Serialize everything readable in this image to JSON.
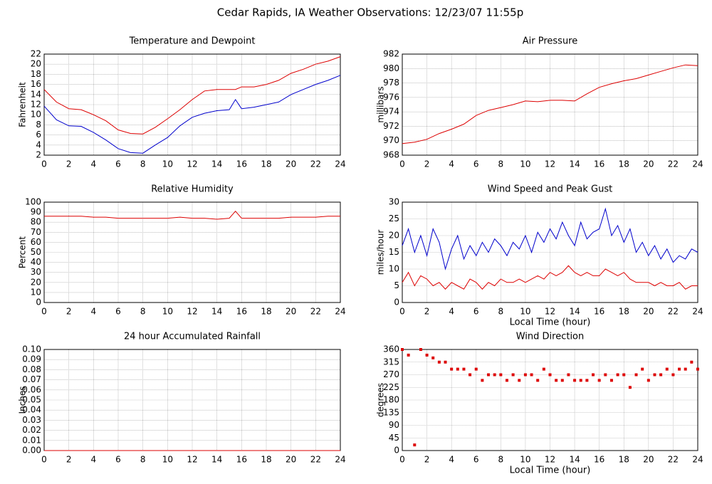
{
  "title": "Cedar Rapids, IA Weather Observations: 12/23/07 11:55p",
  "chart_data": [
    {
      "type": "line",
      "title": "Temperature and Dewpoint",
      "ylabel": "Fahrenheit",
      "x": [
        0,
        1,
        2,
        3,
        4,
        5,
        6,
        7,
        8,
        9,
        10,
        11,
        12,
        13,
        14,
        15,
        15.5,
        16,
        17,
        18,
        19,
        20,
        21,
        22,
        23,
        24
      ],
      "series": [
        {
          "color": "#dd0000",
          "values": [
            15,
            12.5,
            11.2,
            11,
            10,
            8.8,
            7,
            6.3,
            6.2,
            7.5,
            9.2,
            11,
            13,
            14.7,
            15,
            15,
            15,
            15.5,
            15.5,
            16,
            16.8,
            18.2,
            19,
            20,
            20.6,
            21.5
          ]
        },
        {
          "color": "#0000cc",
          "values": [
            11.7,
            9,
            7.8,
            7.7,
            6.5,
            5,
            3.3,
            2.5,
            2.4,
            4,
            5.5,
            7.8,
            9.5,
            10.3,
            10.8,
            11,
            13,
            11.2,
            11.5,
            12,
            12.5,
            14,
            15,
            16,
            16.8,
            17.8
          ]
        }
      ],
      "xlim": [
        0,
        24
      ],
      "ylim": [
        2,
        22
      ],
      "xticks": [
        0,
        2,
        4,
        6,
        8,
        10,
        12,
        14,
        16,
        18,
        20,
        22,
        24
      ],
      "yticks": [
        2,
        4,
        6,
        8,
        10,
        12,
        14,
        16,
        18,
        20,
        22
      ],
      "grid": true
    },
    {
      "type": "line",
      "title": "Air Pressure",
      "ylabel": "millibars",
      "x": [
        0,
        1,
        2,
        3,
        4,
        5,
        6,
        7,
        8,
        9,
        10,
        11,
        12,
        13,
        14,
        15,
        16,
        17,
        18,
        19,
        20,
        21,
        22,
        23,
        24
      ],
      "series": [
        {
          "color": "#dd0000",
          "values": [
            969.6,
            969.8,
            970.2,
            971,
            971.6,
            972.3,
            973.5,
            974.2,
            974.6,
            975,
            975.5,
            975.4,
            975.6,
            975.6,
            975.5,
            976.5,
            977.4,
            977.9,
            978.3,
            978.6,
            979.1,
            979.6,
            980.1,
            980.5,
            980.4
          ]
        }
      ],
      "xlim": [
        0,
        24
      ],
      "ylim": [
        968,
        982
      ],
      "xticks": [
        0,
        2,
        4,
        6,
        8,
        10,
        12,
        14,
        16,
        18,
        20,
        22,
        24
      ],
      "yticks": [
        968,
        970,
        972,
        974,
        976,
        978,
        980,
        982
      ],
      "grid": true
    },
    {
      "type": "line",
      "title": "Relative Humidity",
      "ylabel": "Percent",
      "x": [
        0,
        1,
        2,
        3,
        4,
        5,
        6,
        7,
        8,
        9,
        10,
        11,
        12,
        13,
        14,
        15,
        15.5,
        16,
        17,
        18,
        19,
        20,
        21,
        22,
        23,
        24
      ],
      "series": [
        {
          "color": "#dd0000",
          "values": [
            86,
            86,
            86,
            86,
            85,
            85,
            84,
            84,
            84,
            84,
            84,
            85,
            84,
            84,
            83,
            84,
            91,
            84,
            84,
            84,
            84,
            85,
            85,
            85,
            86,
            86
          ]
        }
      ],
      "xlim": [
        0,
        24
      ],
      "ylim": [
        0,
        100
      ],
      "xticks": [
        0,
        2,
        4,
        6,
        8,
        10,
        12,
        14,
        16,
        18,
        20,
        22,
        24
      ],
      "yticks": [
        0,
        10,
        20,
        30,
        40,
        50,
        60,
        70,
        80,
        90,
        100
      ],
      "grid": true
    },
    {
      "type": "line",
      "title": "Wind Speed and Peak Gust",
      "ylabel": "miles/hour",
      "xlabel": "Local Time (hour)",
      "x": [
        0,
        0.5,
        1,
        1.5,
        2,
        2.5,
        3,
        3.5,
        4,
        4.5,
        5,
        5.5,
        6,
        6.5,
        7,
        7.5,
        8,
        8.5,
        9,
        9.5,
        10,
        10.5,
        11,
        11.5,
        12,
        12.5,
        13,
        13.5,
        14,
        14.5,
        15,
        15.5,
        16,
        16.5,
        17,
        17.5,
        18,
        18.5,
        19,
        19.5,
        20,
        20.5,
        21,
        21.5,
        22,
        22.5,
        23,
        23.5,
        24
      ],
      "series": [
        {
          "color": "#0000cc",
          "values": [
            17,
            22,
            15,
            20,
            14,
            22,
            18,
            10,
            16,
            20,
            13,
            17,
            14,
            18,
            15,
            19,
            17,
            14,
            18,
            16,
            20,
            15,
            21,
            18,
            22,
            19,
            24,
            20,
            17,
            24,
            19,
            21,
            22,
            28,
            20,
            23,
            18,
            22,
            15,
            18,
            14,
            17,
            13,
            16,
            12,
            14,
            13,
            16,
            15
          ]
        },
        {
          "color": "#dd0000",
          "values": [
            6,
            9,
            5,
            8,
            7,
            5,
            6,
            4,
            6,
            5,
            4,
            7,
            6,
            4,
            6,
            5,
            7,
            6,
            6,
            7,
            6,
            7,
            8,
            7,
            9,
            8,
            9,
            11,
            9,
            8,
            9,
            8,
            8,
            10,
            9,
            8,
            9,
            7,
            6,
            6,
            6,
            5,
            6,
            5,
            5,
            6,
            4,
            5,
            5
          ]
        }
      ],
      "xlim": [
        0,
        24
      ],
      "ylim": [
        0,
        30
      ],
      "xticks": [
        0,
        2,
        4,
        6,
        8,
        10,
        12,
        14,
        16,
        18,
        20,
        22,
        24
      ],
      "yticks": [
        0,
        5,
        10,
        15,
        20,
        25,
        30
      ],
      "grid": true
    },
    {
      "type": "line",
      "title": "24 hour Accumulated Rainfall",
      "ylabel": "Inches",
      "x": [
        0,
        24
      ],
      "values": [
        0,
        0
      ],
      "color": "#dd0000",
      "xlim": [
        0,
        24
      ],
      "ylim": [
        0,
        0.1
      ],
      "xticks": [
        0,
        2,
        4,
        6,
        8,
        10,
        12,
        14,
        16,
        18,
        20,
        22,
        24
      ],
      "yticks": [
        {
          "value": 0,
          "label": "0.00"
        },
        {
          "value": 0.01,
          "label": "0.01"
        },
        {
          "value": 0.02,
          "label": "0.02"
        },
        {
          "value": 0.03,
          "label": "0.03"
        },
        {
          "value": 0.04,
          "label": "0.04"
        },
        {
          "value": 0.05,
          "label": "0.05"
        },
        {
          "value": 0.06,
          "label": "0.06"
        },
        {
          "value": 0.07,
          "label": "0.07"
        },
        {
          "value": 0.08,
          "label": "0.08"
        },
        {
          "value": 0.09,
          "label": "0.09"
        },
        {
          "value": 0.1,
          "label": "0.10"
        }
      ],
      "grid": true
    },
    {
      "type": "scatter",
      "title": "Wind Direction",
      "ylabel": "degrees",
      "xlabel": "Local Time (hour)",
      "x": [
        0,
        0.5,
        1,
        1.5,
        2,
        2.5,
        3,
        3.5,
        4,
        4.5,
        5,
        5.5,
        6,
        6.5,
        7,
        7.5,
        8,
        8.5,
        9,
        9.5,
        10,
        10.5,
        11,
        11.5,
        12,
        12.5,
        13,
        13.5,
        14,
        14.5,
        15,
        15.5,
        16,
        16.5,
        17,
        17.5,
        18,
        18.5,
        19,
        19.5,
        20,
        20.5,
        21,
        21.5,
        22,
        22.5,
        23,
        23.5,
        24
      ],
      "values": [
        360,
        340,
        20,
        360,
        340,
        330,
        315,
        315,
        290,
        290,
        290,
        270,
        290,
        250,
        270,
        270,
        270,
        250,
        270,
        250,
        270,
        270,
        250,
        290,
        270,
        250,
        250,
        270,
        250,
        250,
        250,
        270,
        250,
        270,
        250,
        270,
        270,
        225,
        270,
        290,
        250,
        270,
        270,
        290,
        270,
        290,
        290,
        315,
        290
      ],
      "color": "#dd0000",
      "xlim": [
        0,
        24
      ],
      "ylim": [
        0,
        360
      ],
      "xticks": [
        0,
        2,
        4,
        6,
        8,
        10,
        12,
        14,
        16,
        18,
        20,
        22,
        24
      ],
      "yticks": [
        0,
        45,
        90,
        135,
        180,
        225,
        270,
        315,
        360
      ],
      "grid": true
    }
  ]
}
